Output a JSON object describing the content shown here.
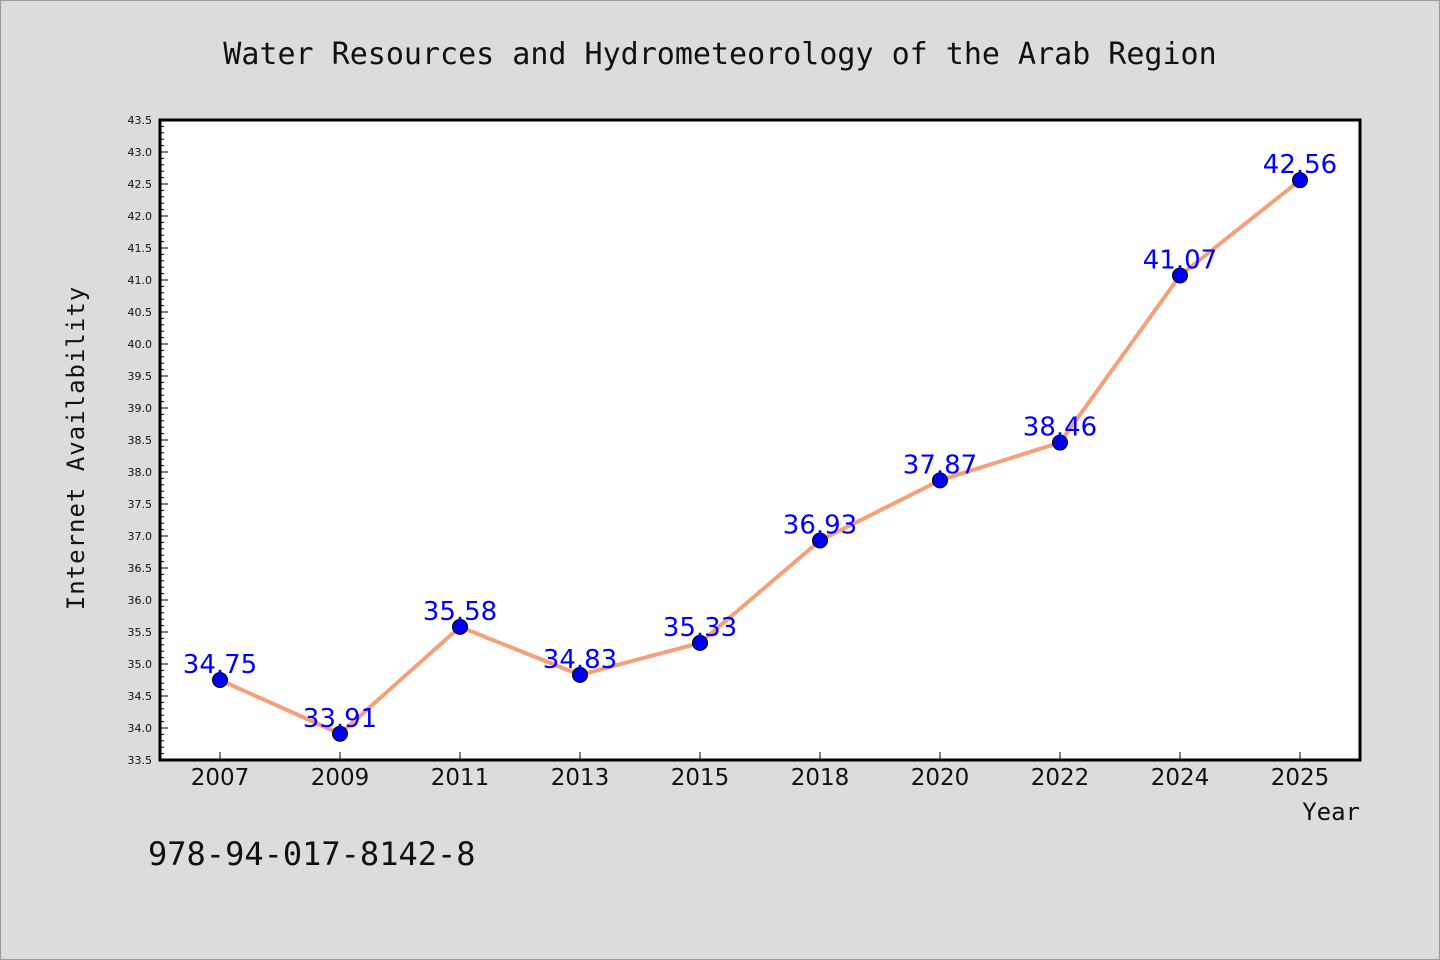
{
  "chart_data": {
    "type": "line",
    "title": "Water Resources and Hydrometeorology of the Arab Region",
    "xlabel": "Year",
    "ylabel": "Internet Availability",
    "categories": [
      "2007",
      "2009",
      "2011",
      "2013",
      "2015",
      "2018",
      "2020",
      "2022",
      "2024",
      "2025"
    ],
    "series": [
      {
        "values": [
          34.75,
          33.91,
          35.58,
          34.83,
          35.33,
          36.93,
          37.87,
          38.46,
          41.07,
          42.56
        ],
        "line_color": "#f4a07a",
        "marker_color": "#0000ee"
      }
    ],
    "data_labels": [
      "34.75",
      "33.91",
      "35.58",
      "34.83",
      "35.33",
      "36.93",
      "37.87",
      "38.46",
      "41.07",
      "42.56"
    ],
    "ylim": [
      33.5,
      43.5
    ],
    "yticks": [
      "33.5",
      "34.0",
      "34.5",
      "35.0",
      "35.5",
      "36.0",
      "36.5",
      "37.0",
      "37.5",
      "38.0",
      "38.5",
      "39.0",
      "39.5",
      "40.0",
      "40.5",
      "41.0",
      "41.5",
      "42.0",
      "42.5",
      "43.0",
      "43.5"
    ],
    "grid": false,
    "label_color": "#0000ff"
  },
  "footer": {
    "isbn": "978-94-017-8142-8"
  }
}
